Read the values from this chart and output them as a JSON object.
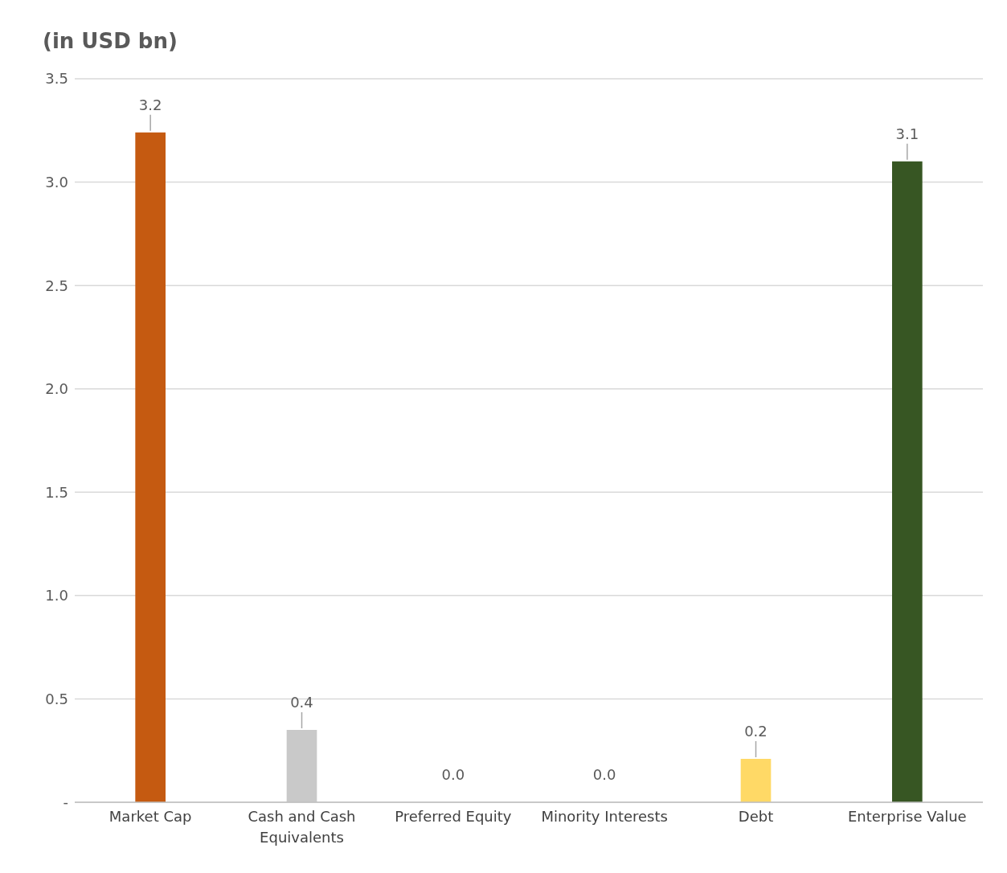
{
  "chart_data": {
    "type": "bar",
    "title": "(in USD bn)",
    "categories": [
      "Market Cap",
      "Cash and Cash Equivalents",
      "Preferred Equity",
      "Minority Interests",
      "Debt",
      "Enterprise Value"
    ],
    "values": [
      3.24,
      0.35,
      0,
      0,
      0.21,
      3.1
    ],
    "value_labels": [
      "3.2",
      "0.4",
      "0.0",
      "0.0",
      "0.2",
      "3.1"
    ],
    "colors": [
      "#c55a11",
      "#c9c9c9",
      "#a5a5a5",
      "#5b9bd5",
      "#ffd966",
      "#375623"
    ],
    "ylim": [
      0,
      3.5
    ],
    "yticks": [
      {
        "value": 0,
        "label": "-"
      },
      {
        "value": 0.5,
        "label": "0.5"
      },
      {
        "value": 1,
        "label": "1.0"
      },
      {
        "value": 1.5,
        "label": "1.5"
      },
      {
        "value": 2,
        "label": "2.0"
      },
      {
        "value": 2.5,
        "label": "2.5"
      },
      {
        "value": 3,
        "label": "3.0"
      },
      {
        "value": 3.5,
        "label": "3.5"
      }
    ],
    "grid": "y",
    "legend": false
  }
}
